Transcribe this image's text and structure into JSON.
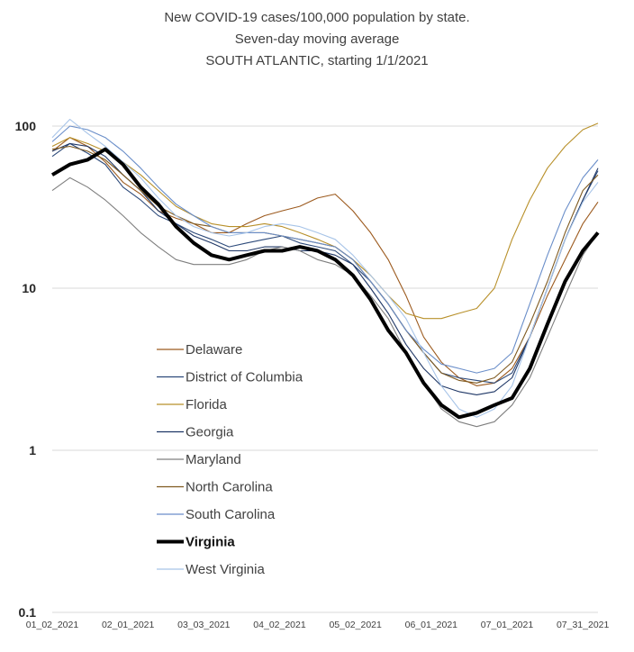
{
  "chart_data": {
    "type": "line",
    "title_lines": [
      "New COVID-19 cases/100,000 population by state.",
      "Seven-day moving average",
      "SOUTH ATLANTIC, starting 1/1/2021"
    ],
    "yscale": "log",
    "ylim": [
      0.1,
      100
    ],
    "y_ticks": [
      "100",
      "10",
      "1",
      "0.1"
    ],
    "x_ticks": [
      "01_02_2021",
      "02_01_2021",
      "03_03_2021",
      "04_02_2021",
      "05_02_2021",
      "06_01_2021",
      "07_01_2021",
      "07_31_2021"
    ],
    "xlim": [
      "2021-01-02",
      "2021-08-06"
    ],
    "grid": "horizontal",
    "legend_position": "center-left",
    "x_dates": [
      "2021-01-02",
      "2021-01-09",
      "2021-01-16",
      "2021-01-23",
      "2021-01-30",
      "2021-02-06",
      "2021-02-13",
      "2021-02-20",
      "2021-02-27",
      "2021-03-06",
      "2021-03-13",
      "2021-03-20",
      "2021-03-27",
      "2021-04-03",
      "2021-04-10",
      "2021-04-17",
      "2021-04-24",
      "2021-05-01",
      "2021-05-08",
      "2021-05-15",
      "2021-05-22",
      "2021-05-29",
      "2021-06-05",
      "2021-06-12",
      "2021-06-19",
      "2021-06-26",
      "2021-07-03",
      "2021-07-10",
      "2021-07-17",
      "2021-07-24",
      "2021-07-31",
      "2021-08-06"
    ],
    "series": [
      {
        "name": "Delaware",
        "color": "#9c5a1e",
        "bold": false,
        "values": [
          70,
          85,
          75,
          60,
          45,
          38,
          30,
          27,
          25,
          22,
          22,
          25,
          28,
          30,
          32,
          36,
          38,
          30,
          22,
          15,
          9,
          5,
          3.5,
          2.8,
          2.5,
          2.6,
          3.2,
          5,
          9,
          15,
          25,
          34
        ]
      },
      {
        "name": "District of Columbia",
        "color": "#2d4a7a",
        "bold": false,
        "values": [
          65,
          78,
          68,
          58,
          42,
          35,
          28,
          25,
          22,
          20,
          18,
          19,
          20,
          21,
          19,
          18,
          17,
          14,
          11,
          8,
          5.5,
          4,
          3,
          2.8,
          2.7,
          2.6,
          3,
          5,
          10,
          20,
          35,
          53
        ]
      },
      {
        "name": "Florida",
        "color": "#b8902a",
        "bold": false,
        "values": [
          75,
          85,
          78,
          70,
          60,
          50,
          40,
          32,
          28,
          25,
          24,
          24,
          25,
          24,
          22,
          20,
          18,
          15,
          12,
          9,
          7,
          6.5,
          6.5,
          7,
          7.5,
          10,
          20,
          35,
          55,
          75,
          95,
          104
        ]
      },
      {
        "name": "Georgia",
        "color": "#1f3766",
        "bold": false,
        "values": [
          70,
          78,
          75,
          65,
          50,
          40,
          30,
          25,
          21,
          19,
          17,
          17,
          18,
          18,
          17,
          17,
          16,
          14,
          10,
          7,
          4.5,
          3.2,
          2.5,
          2.3,
          2.2,
          2.3,
          2.8,
          5,
          10,
          20,
          35,
          55
        ]
      },
      {
        "name": "Maryland",
        "color": "#7f7f7f",
        "bold": false,
        "values": [
          40,
          48,
          42,
          35,
          28,
          22,
          18,
          15,
          14,
          14,
          14,
          15,
          17,
          18,
          17,
          15,
          14,
          12,
          9,
          6.5,
          4,
          2.6,
          1.8,
          1.5,
          1.4,
          1.5,
          1.9,
          2.8,
          5,
          9,
          16,
          22
        ]
      },
      {
        "name": "North Carolina",
        "color": "#7f5a20",
        "bold": false,
        "values": [
          72,
          75,
          70,
          62,
          50,
          40,
          32,
          28,
          25,
          24,
          22,
          22,
          22,
          21,
          20,
          19,
          18,
          15,
          11,
          8,
          5.5,
          4,
          3,
          2.7,
          2.6,
          2.8,
          3.5,
          6,
          11,
          22,
          40,
          50
        ]
      },
      {
        "name": "South Carolina",
        "color": "#6a8ec9",
        "bold": false,
        "values": [
          80,
          100,
          95,
          85,
          70,
          55,
          42,
          33,
          28,
          24,
          22,
          22,
          22,
          21,
          20,
          19,
          18,
          15,
          11,
          8,
          5.5,
          4.2,
          3.4,
          3.2,
          3,
          3.2,
          4,
          8,
          16,
          30,
          48,
          62
        ]
      },
      {
        "name": "Virginia",
        "color": "#000000",
        "bold": true,
        "values": [
          50,
          58,
          62,
          72,
          58,
          42,
          33,
          24,
          19,
          16,
          15,
          16,
          17,
          17,
          18,
          17,
          15,
          12,
          8.5,
          5.5,
          4,
          2.6,
          1.9,
          1.6,
          1.7,
          1.9,
          2.1,
          3.2,
          6,
          11,
          17,
          22
        ]
      },
      {
        "name": "West Virginia",
        "color": "#a7c4e8",
        "bold": false,
        "values": [
          85,
          110,
          90,
          75,
          60,
          48,
          36,
          28,
          24,
          22,
          21,
          22,
          24,
          25,
          24,
          22,
          20,
          16,
          12,
          9,
          6.5,
          4,
          2.5,
          1.8,
          1.6,
          1.8,
          2.5,
          5,
          10,
          20,
          34,
          45
        ]
      }
    ]
  }
}
